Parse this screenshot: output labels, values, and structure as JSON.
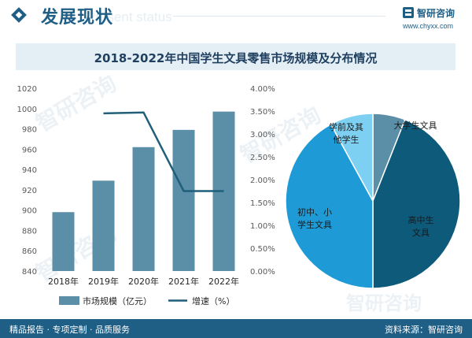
{
  "header": {
    "title": "发展现状",
    "title_watermark": "Present status",
    "brand_name": "智研咨询",
    "brand_url": "www.chyxx.com"
  },
  "chart_title": "2018-2022年中国学生文具零售市场规模及分布情况",
  "footer": {
    "left": "精品报告 · 专项定制 · 品质服务",
    "right": "资料来源：智研咨询"
  },
  "watermark": {
    "text": "智研咨询"
  },
  "colors": {
    "bar": "#5b8fa8",
    "line": "#1f5f7a",
    "brand": "#1f5f86",
    "pie": [
      "#5b8fa8",
      "#0e5a7a",
      "#1e9bd6",
      "#7dd0f2"
    ]
  },
  "chart_data": [
    {
      "type": "bar",
      "categories": [
        "2018年",
        "2019年",
        "2020年",
        "2021年",
        "2022年"
      ],
      "series": [
        {
          "name": "市场规模（亿元）",
          "type": "bar",
          "axis": "left",
          "values": [
            898,
            929,
            962,
            979,
            997
          ]
        },
        {
          "name": "增速（%）",
          "type": "line",
          "axis": "right",
          "values": [
            null,
            3.45,
            3.47,
            1.75,
            1.75
          ]
        }
      ],
      "ylim": [
        840,
        1020
      ],
      "yticks": [
        "840",
        "860",
        "880",
        "900",
        "920",
        "940",
        "960",
        "980",
        "1000",
        "1020"
      ],
      "y2lim": [
        0,
        4
      ],
      "y2ticks": [
        "0.00%",
        "0.50%",
        "1.00%",
        "1.50%",
        "2.00%",
        "2.50%",
        "3.00%",
        "3.50%",
        "4.00%"
      ],
      "legend_position": "bottom"
    },
    {
      "type": "pie",
      "labels": [
        "大学生文具",
        "高中生文具",
        "初中、小学生文具",
        "学前及其他学生"
      ],
      "values": [
        6,
        44,
        42,
        8
      ]
    }
  ]
}
